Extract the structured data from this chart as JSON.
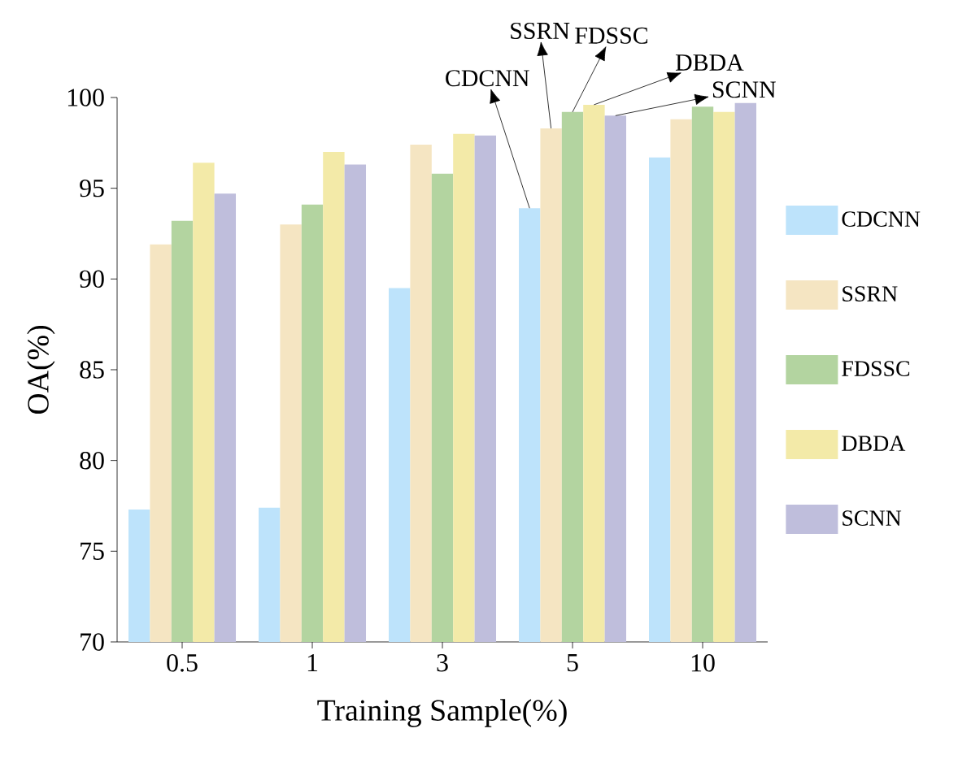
{
  "chart_data": {
    "type": "bar",
    "xlabel": "Training Sample(%)",
    "ylabel": "OA(%)",
    "categories": [
      "0.5",
      "1",
      "3",
      "5",
      "10"
    ],
    "series": [
      {
        "name": "CDCNN",
        "color": "#bde3fb",
        "values": [
          77.3,
          77.4,
          89.5,
          93.9,
          96.7
        ]
      },
      {
        "name": "SSRN",
        "color": "#f5e5c2",
        "values": [
          91.9,
          93.0,
          97.4,
          98.3,
          98.8
        ]
      },
      {
        "name": "FDSSC",
        "color": "#b3d4a0",
        "values": [
          93.2,
          94.1,
          95.8,
          99.2,
          99.5
        ]
      },
      {
        "name": "DBDA",
        "color": "#f3eaa8",
        "values": [
          96.4,
          97.0,
          98.0,
          99.6,
          99.2
        ]
      },
      {
        "name": "SCNN",
        "color": "#bfbedc",
        "values": [
          94.7,
          96.3,
          97.9,
          99.0,
          99.7
        ]
      }
    ],
    "ylim": [
      70,
      100
    ],
    "yticks": [
      70,
      75,
      80,
      85,
      90,
      95,
      100
    ],
    "annotations": [
      "CDCNN",
      "SSRN",
      "FDSSC",
      "DBDA",
      "SCNN"
    ],
    "legend": "right",
    "grid": false
  }
}
